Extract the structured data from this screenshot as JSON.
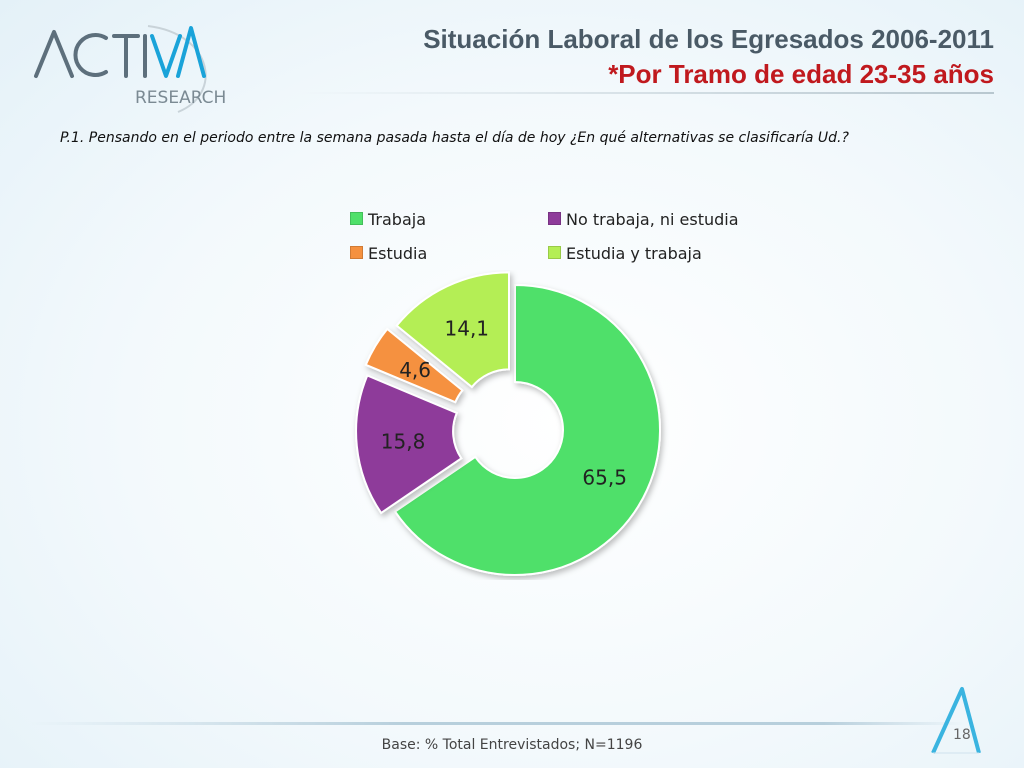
{
  "logo": {
    "brand_letters": "ACTIVA",
    "research": "RESEARCH"
  },
  "header": {
    "title": "Situación Laboral de los Egresados 2006-2011",
    "subtitle": "*Por Tramo de edad 23-35 años"
  },
  "question": "P.1.  Pensando en el periodo entre la semana pasada hasta el día de hoy ¿En qué alternativas se clasificaría Ud.?",
  "colors": {
    "trabaja": "#4fe06a",
    "no_trabaja": "#8e3b9a",
    "estudia": "#f5913f",
    "estudia_trabaja": "#b4ee55",
    "title": "#4a5a66",
    "subtitle": "#c0191e"
  },
  "chart_data": {
    "type": "pie",
    "variant": "donut, exploded",
    "legend_placement": "top",
    "series": [
      {
        "name": "Trabaja",
        "value": 65.5,
        "label": "65,5",
        "color": "#4fe06a"
      },
      {
        "name": "No trabaja, ni estudia",
        "value": 15.8,
        "label": "15,8",
        "color": "#8e3b9a"
      },
      {
        "name": "Estudia",
        "value": 4.6,
        "label": "4,6",
        "color": "#f5913f"
      },
      {
        "name": "Estudia y trabaja",
        "value": 14.1,
        "label": "14,1",
        "color": "#b4ee55"
      }
    ]
  },
  "footer": {
    "note": "Base: % Total Entrevistados; N=1196",
    "page_number": "18"
  }
}
